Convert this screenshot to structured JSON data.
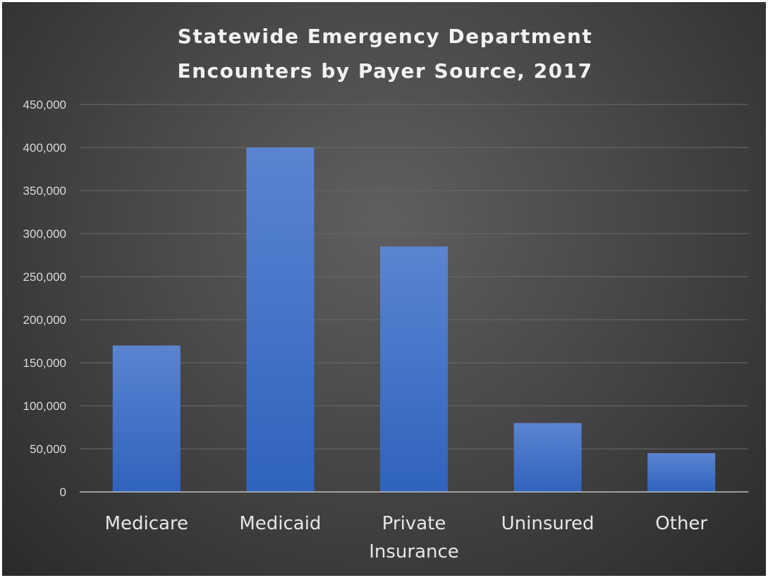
{
  "chart_data": {
    "type": "bar",
    "title": "Statewide Emergency Department Encounters by Payer Source, 2017",
    "title_lines": [
      "Statewide Emergency Department",
      "Encounters by Payer Source, 2017"
    ],
    "categories": [
      "Medicare",
      "Medicaid",
      "Private Insurance",
      "Uninsured",
      "Other"
    ],
    "category_lines": [
      [
        "Medicare"
      ],
      [
        "Medicaid"
      ],
      [
        "Private",
        "Insurance"
      ],
      [
        "Uninsured"
      ],
      [
        "Other"
      ]
    ],
    "values": [
      170000,
      400000,
      285000,
      80000,
      45000
    ],
    "xlabel": "",
    "ylabel": "",
    "ylim": [
      0,
      450000
    ],
    "yticks": [
      0,
      50000,
      100000,
      150000,
      200000,
      250000,
      300000,
      350000,
      400000,
      450000
    ],
    "ytick_labels": [
      "0",
      "50,000",
      "100,000",
      "150,000",
      "200,000",
      "250,000",
      "300,000",
      "350,000",
      "400,000",
      "450,000"
    ],
    "grid": true,
    "legend": "none",
    "colors": {
      "bar_top": "#5b84d0",
      "bar_bottom": "#2f63be",
      "background": "#3f3f3f",
      "title": "#f2f2f2"
    }
  }
}
